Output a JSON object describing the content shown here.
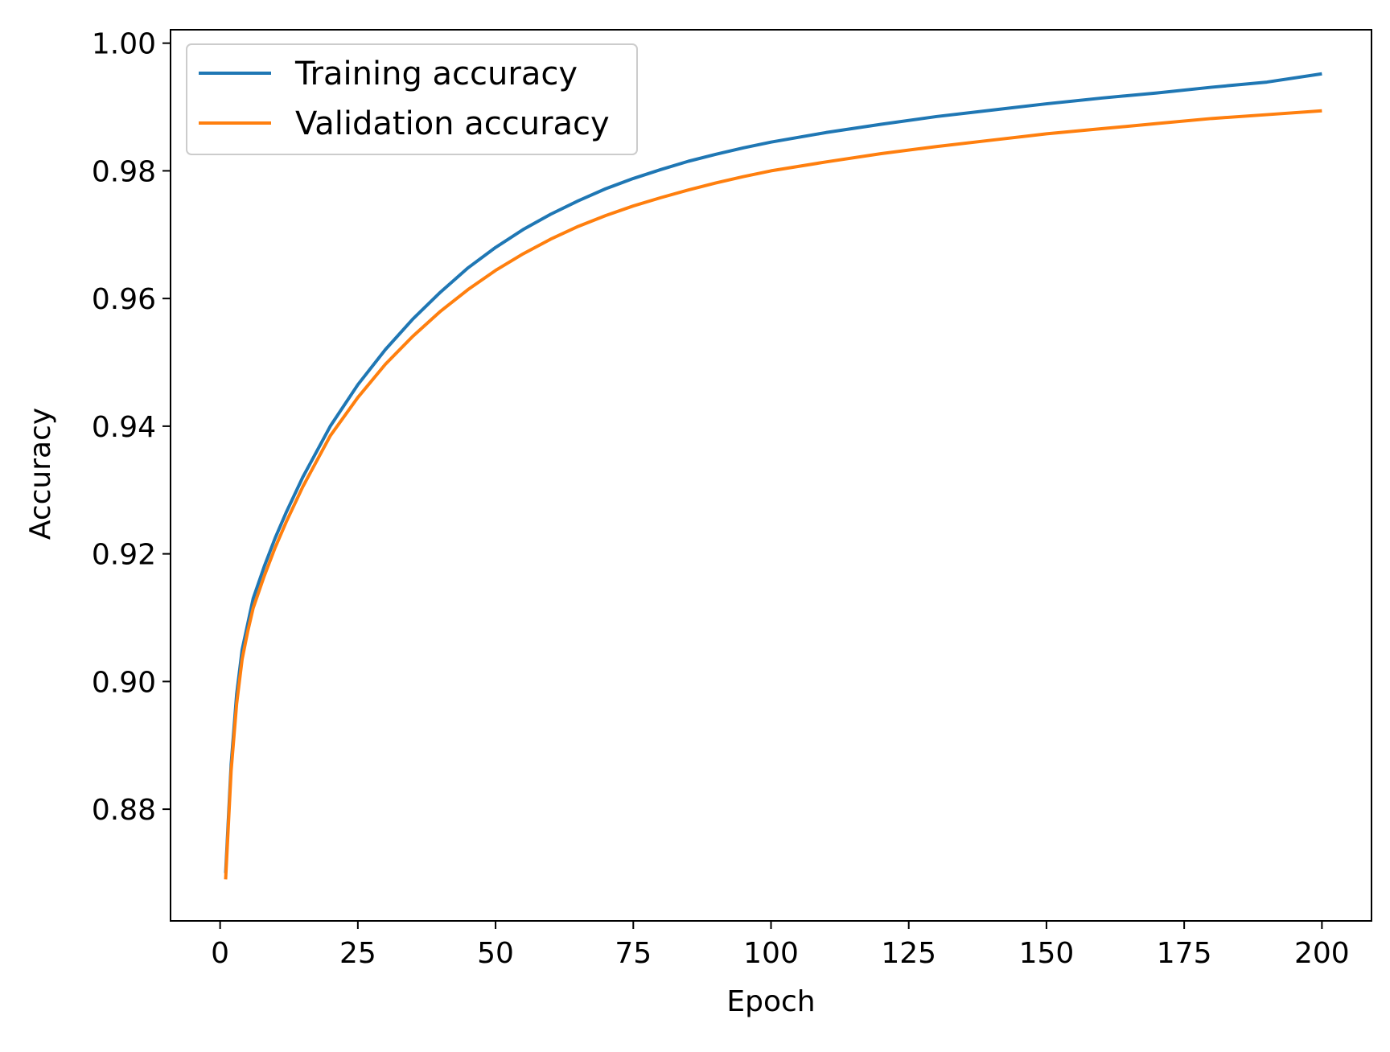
{
  "chart_data": {
    "type": "line",
    "title": "",
    "xlabel": "Epoch",
    "ylabel": "Accuracy",
    "xlim": [
      -9,
      209
    ],
    "ylim": [
      0.8625,
      1.0021
    ],
    "xticks": [
      0,
      25,
      50,
      75,
      100,
      125,
      150,
      175,
      200
    ],
    "xtick_labels": [
      "0",
      "25",
      "50",
      "75",
      "100",
      "125",
      "150",
      "175",
      "200"
    ],
    "yticks": [
      0.88,
      0.9,
      0.92,
      0.94,
      0.96,
      0.98,
      1.0
    ],
    "ytick_labels": [
      "0.88",
      "0.90",
      "0.92",
      "0.94",
      "0.96",
      "0.98",
      "1.00"
    ],
    "grid": false,
    "legend_position": "upper-left",
    "x": [
      1,
      2,
      3,
      4,
      5,
      6,
      8,
      10,
      12,
      15,
      20,
      25,
      30,
      35,
      40,
      45,
      50,
      55,
      60,
      65,
      70,
      75,
      80,
      85,
      90,
      95,
      100,
      110,
      120,
      130,
      140,
      150,
      160,
      170,
      180,
      190,
      200
    ],
    "series": [
      {
        "name": "Training accuracy",
        "color": "#1f77b4",
        "values": [
          0.87,
          0.887,
          0.898,
          0.905,
          0.909,
          0.913,
          0.918,
          0.9225,
          0.9265,
          0.932,
          0.94,
          0.9465,
          0.952,
          0.9568,
          0.961,
          0.9648,
          0.968,
          0.9708,
          0.9732,
          0.9753,
          0.9772,
          0.9788,
          0.9802,
          0.9815,
          0.9826,
          0.9836,
          0.9845,
          0.986,
          0.9873,
          0.9885,
          0.9895,
          0.9905,
          0.9914,
          0.9922,
          0.9931,
          0.9939,
          0.9952
        ]
      },
      {
        "name": "Validation accuracy",
        "color": "#ff7f0e",
        "values": [
          0.869,
          0.886,
          0.8965,
          0.9035,
          0.9078,
          0.9115,
          0.9165,
          0.921,
          0.925,
          0.9305,
          0.9385,
          0.9445,
          0.9497,
          0.9541,
          0.958,
          0.9614,
          0.9644,
          0.967,
          0.9693,
          0.9713,
          0.973,
          0.9745,
          0.9758,
          0.977,
          0.9781,
          0.9791,
          0.98,
          0.9814,
          0.9827,
          0.9838,
          0.9848,
          0.9858,
          0.9866,
          0.9874,
          0.9882,
          0.9888,
          0.9894
        ]
      }
    ]
  }
}
